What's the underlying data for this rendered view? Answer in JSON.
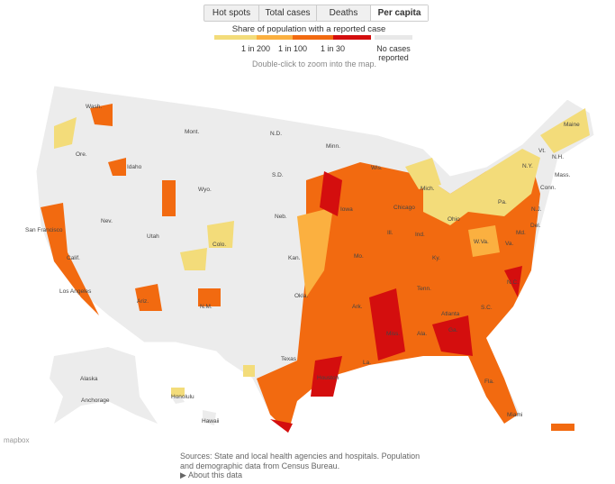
{
  "tabs": [
    "Hot spots",
    "Total cases",
    "Deaths",
    "Per capita"
  ],
  "legend": {
    "title": "Share of population with a reported case",
    "labels": [
      "1 in 200",
      "1 in 100",
      "1 in 30"
    ],
    "no_cases": "No cases reported"
  },
  "hint": "Double-click to zoom into the map.",
  "states": [
    "Wash.",
    "Mont.",
    "N.D.",
    "Minn.",
    "Maine",
    "Ore.",
    "Idaho",
    "S.D.",
    "Wyo.",
    "Wis.",
    "Mich.",
    "Vt.",
    "N.H.",
    "N.Y.",
    "Mass.",
    "Conn.",
    "Neb.",
    "Iowa",
    "Pa.",
    "N.J.",
    "Ohio",
    "Ill.",
    "Ind.",
    "W.Va.",
    "Va.",
    "Del.",
    "Md.",
    "Nev.",
    "Utah",
    "Colo.",
    "Kan.",
    "Mo.",
    "Ky.",
    "Calif.",
    "N.C.",
    "Tenn.",
    "Ariz.",
    "N.M.",
    "Okla.",
    "Ark.",
    "S.C.",
    "Miss.",
    "Ala.",
    "Ga.",
    "Texas",
    "La.",
    "Fla.",
    "Alaska",
    "Hawaii"
  ],
  "cities": [
    "San Francisco",
    "Los Angeles",
    "Chicago",
    "Atlanta",
    "Houston",
    "Miami",
    "Anchorage",
    "Honolulu"
  ],
  "sources": "Sources: State and local health agencies and hospitals. Population and demographic data from Census Bureau.",
  "about": "About this data",
  "attribution": "mapbox"
}
